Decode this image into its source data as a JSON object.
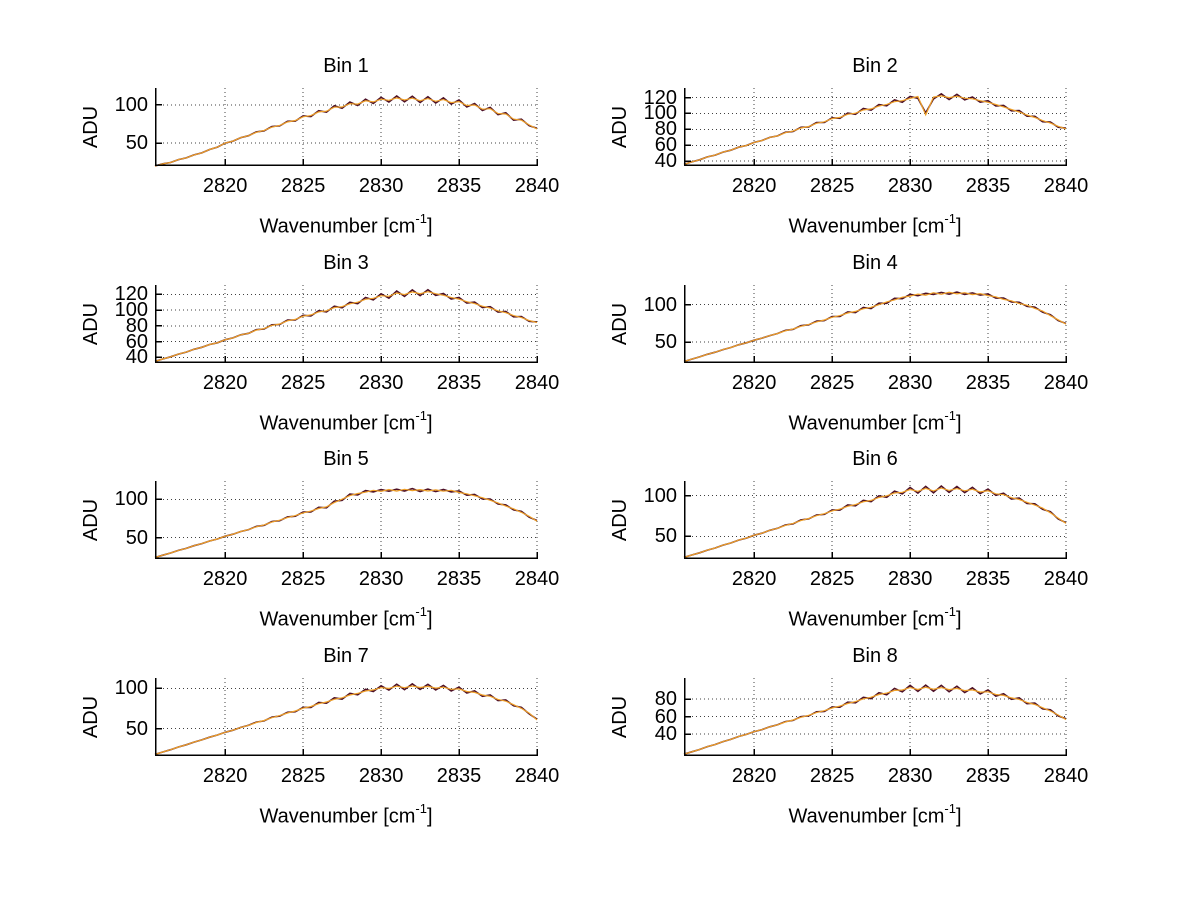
{
  "figure": {
    "ylabel": "ADU",
    "xlabel": {
      "pre": "Wavenumber [cm",
      "sup": "-1",
      "post": "]"
    },
    "x_ticks": [
      "2820",
      "2825",
      "2830",
      "2835",
      "2840"
    ],
    "colors": {
      "background": "#ffffff",
      "line_main": "#efa028",
      "line_under": "#4d1026",
      "axis": "#000000",
      "grid": "#404040"
    },
    "grid": "dotted",
    "layout_hint": "4 rows x 2 columns, axes left+bottom only, dotted grid"
  },
  "chart_data": [
    {
      "type": "line",
      "title": "Bin 1",
      "xlabel": "Wavenumber [cm-1]",
      "ylabel": "ADU",
      "xlim": [
        2815.5,
        2840
      ],
      "ylim": [
        20,
        122
      ],
      "yticks": [
        50,
        100
      ],
      "x_start": 2815.5,
      "x_step": 0.5,
      "values": [
        20.0,
        22.9,
        24.6,
        28.4,
        30.6,
        34.5,
        37.1,
        41.6,
        44.7,
        49.9,
        52.6,
        57.2,
        59.6,
        64.1,
        66.5,
        70.8,
        73.1,
        77.6,
        79.5,
        84.3,
        85.9,
        90.8,
        91.7,
        96.9,
        97.2,
        101.5,
        100.9,
        105.2,
        103.8,
        107.4,
        105.9,
        109.1,
        106.3,
        108.6,
        105.4,
        108.1,
        104.6,
        106.8,
        102.9,
        104.2,
        99.1,
        99.8,
        94.3,
        94.9,
        88.7,
        88.0,
        81.3,
        79.9,
        73.8,
        68.4
      ]
    },
    {
      "type": "line",
      "title": "Bin 2",
      "xlabel": "Wavenumber [cm-1]",
      "ylabel": "ADU",
      "xlim": [
        2815.5,
        2840
      ],
      "ylim": [
        34,
        132
      ],
      "yticks": [
        40,
        60,
        80,
        100,
        120
      ],
      "x_start": 2815.5,
      "x_step": 0.5,
      "values": [
        36.0,
        39.2,
        41.8,
        45.4,
        47.7,
        51.5,
        53.8,
        57.6,
        59.8,
        63.7,
        66.0,
        69.9,
        71.8,
        75.9,
        77.8,
        81.8,
        83.6,
        87.7,
        89.5,
        93.5,
        95.1,
        99.0,
        100.4,
        104.4,
        105.7,
        109.2,
        111.4,
        114.8,
        116.1,
        118.9,
        121.3,
        98.2,
        120.6,
        122.1,
        119.9,
        121.6,
        119.2,
        118.4,
        116.1,
        114.0,
        111.3,
        108.2,
        105.0,
        101.9,
        98.1,
        94.9,
        91.0,
        87.9,
        83.9,
        80.6
      ]
    },
    {
      "type": "line",
      "title": "Bin 3",
      "xlabel": "Wavenumber [cm-1]",
      "ylabel": "ADU",
      "xlim": [
        2815.5,
        2840
      ],
      "ylim": [
        33,
        132
      ],
      "yticks": [
        40,
        60,
        80,
        100,
        120
      ],
      "x_start": 2815.5,
      "x_step": 0.5,
      "values": [
        35.0,
        38.1,
        40.9,
        44.3,
        46.8,
        50.4,
        52.9,
        56.5,
        58.7,
        62.6,
        64.9,
        68.8,
        70.7,
        74.8,
        76.7,
        80.7,
        82.5,
        86.6,
        88.4,
        92.4,
        94.0,
        97.9,
        99.3,
        103.3,
        104.6,
        108.1,
        110.2,
        113.9,
        115.1,
        118.4,
        117.6,
        121.9,
        119.8,
        123.2,
        120.9,
        123.5,
        121.0,
        118.9,
        116.2,
        114.0,
        110.8,
        108.4,
        105.1,
        102.7,
        99.2,
        96.8,
        93.1,
        90.6,
        86.9,
        84.3
      ]
    },
    {
      "type": "line",
      "title": "Bin 4",
      "xlabel": "Wavenumber [cm-1]",
      "ylabel": "ADU",
      "xlim": [
        2815.5,
        2840
      ],
      "ylim": [
        22,
        126
      ],
      "yticks": [
        50,
        100
      ],
      "x_start": 2815.5,
      "x_step": 0.5,
      "values": [
        24.0,
        27.2,
        30.1,
        33.6,
        36.4,
        39.9,
        42.7,
        46.2,
        48.9,
        52.4,
        55.2,
        58.6,
        61.3,
        64.9,
        67.4,
        70.9,
        73.5,
        76.8,
        79.3,
        82.9,
        85.2,
        88.7,
        90.8,
        94.3,
        96.2,
        99.8,
        103.4,
        106.1,
        109.8,
        111.2,
        113.9,
        112.4,
        115.8,
        113.6,
        116.2,
        114.1,
        115.7,
        113.2,
        114.6,
        111.9,
        110.3,
        106.8,
        104.9,
        101.2,
        99.1,
        94.8,
        91.3,
        85.1,
        79.6,
        73.8
      ]
    },
    {
      "type": "line",
      "title": "Bin 5",
      "xlabel": "Wavenumber [cm-1]",
      "ylabel": "ADU",
      "xlim": [
        2815.5,
        2840
      ],
      "ylim": [
        22,
        124
      ],
      "yticks": [
        50,
        100
      ],
      "x_start": 2815.5,
      "x_step": 0.5,
      "values": [
        24.0,
        27.0,
        29.8,
        33.2,
        35.9,
        39.4,
        42.1,
        45.6,
        48.2,
        51.8,
        54.4,
        57.9,
        60.5,
        64.1,
        66.6,
        70.2,
        72.7,
        76.2,
        78.8,
        82.3,
        84.6,
        88.1,
        90.3,
        95.8,
        100.2,
        104.9,
        107.6,
        109.3,
        111.8,
        110.4,
        112.9,
        110.8,
        113.2,
        111.4,
        112.7,
        110.9,
        112.4,
        110.6,
        111.8,
        108.9,
        107.2,
        104.6,
        102.1,
        98.7,
        95.4,
        91.2,
        87.6,
        82.9,
        77.8,
        71.4
      ]
    },
    {
      "type": "line",
      "title": "Bin 6",
      "xlabel": "Wavenumber [cm-1]",
      "ylabel": "ADU",
      "xlim": [
        2815.5,
        2840
      ],
      "ylim": [
        22,
        118
      ],
      "yticks": [
        50,
        100
      ],
      "x_start": 2815.5,
      "x_step": 0.5,
      "values": [
        24.0,
        26.9,
        29.6,
        33.0,
        35.6,
        39.1,
        41.7,
        45.2,
        47.7,
        51.3,
        53.8,
        57.3,
        59.8,
        63.4,
        65.8,
        69.3,
        71.9,
        75.3,
        77.7,
        81.2,
        83.4,
        86.9,
        88.9,
        92.4,
        94.1,
        97.7,
        99.8,
        103.2,
        104.1,
        107.6,
        105.3,
        108.9,
        105.8,
        109.2,
        106.4,
        108.7,
        105.9,
        107.8,
        104.6,
        105.9,
        102.3,
        101.1,
        97.4,
        95.2,
        91.8,
        88.3,
        84.6,
        78.9,
        72.3,
        65.8
      ]
    },
    {
      "type": "line",
      "title": "Bin 7",
      "xlabel": "Wavenumber [cm-1]",
      "ylabel": "ADU",
      "xlim": [
        2815.5,
        2840
      ],
      "ylim": [
        16,
        113
      ],
      "yticks": [
        50,
        100
      ],
      "x_start": 2815.5,
      "x_step": 0.5,
      "values": [
        18.0,
        21.0,
        23.8,
        27.2,
        29.9,
        33.3,
        36.0,
        39.4,
        42.1,
        45.5,
        48.1,
        51.6,
        54.2,
        57.6,
        60.1,
        63.6,
        66.2,
        69.5,
        71.9,
        75.4,
        77.6,
        81.0,
        83.1,
        86.5,
        88.4,
        91.8,
        93.9,
        96.8,
        98.2,
        100.9,
        100.1,
        102.8,
        100.9,
        103.1,
        101.2,
        102.6,
        100.4,
        101.5,
        98.9,
        99.4,
        96.2,
        95.1,
        91.8,
        90.2,
        86.4,
        84.1,
        79.8,
        75.2,
        69.4,
        60.9
      ]
    },
    {
      "type": "line",
      "title": "Bin 8",
      "xlabel": "Wavenumber [cm-1]",
      "ylabel": "ADU",
      "xlim": [
        2815.5,
        2840
      ],
      "ylim": [
        15,
        104
      ],
      "yticks": [
        40,
        60,
        80
      ],
      "x_start": 2815.5,
      "x_step": 0.5,
      "values": [
        17.0,
        19.8,
        22.4,
        25.7,
        28.1,
        31.4,
        33.9,
        37.2,
        39.6,
        42.8,
        45.1,
        48.3,
        50.6,
        53.8,
        56.1,
        59.2,
        61.4,
        64.5,
        66.7,
        69.8,
        71.9,
        74.9,
        77.1,
        80.2,
        82.1,
        85.2,
        86.8,
        89.9,
        90.3,
        93.1,
        90.9,
        93.4,
        91.2,
        93.0,
        90.8,
        92.1,
        89.6,
        90.4,
        87.9,
        88.3,
        85.2,
        84.1,
        81.3,
        79.6,
        76.2,
        73.8,
        70.1,
        66.4,
        61.8,
        56.5
      ]
    }
  ],
  "underlay_jitter": [
    0,
    0,
    0,
    0,
    0,
    0,
    0,
    0,
    0,
    0,
    0,
    0,
    0,
    0.5,
    -0.5,
    0.8,
    -0.6,
    0.9,
    -0.8,
    1.1,
    -1.2,
    1.5,
    -1.4,
    1.8,
    -1.6,
    2.0,
    -1.8,
    2.2,
    -2.0,
    2.4,
    -2.2,
    2.5,
    -2.3,
    2.6,
    -2.4,
    2.5,
    -2.2,
    2.3,
    -2.0,
    2.1,
    -1.8,
    1.9,
    -1.6,
    1.7,
    -1.5,
    1.6,
    -1.4,
    1.3,
    -1.1,
    0.9
  ]
}
